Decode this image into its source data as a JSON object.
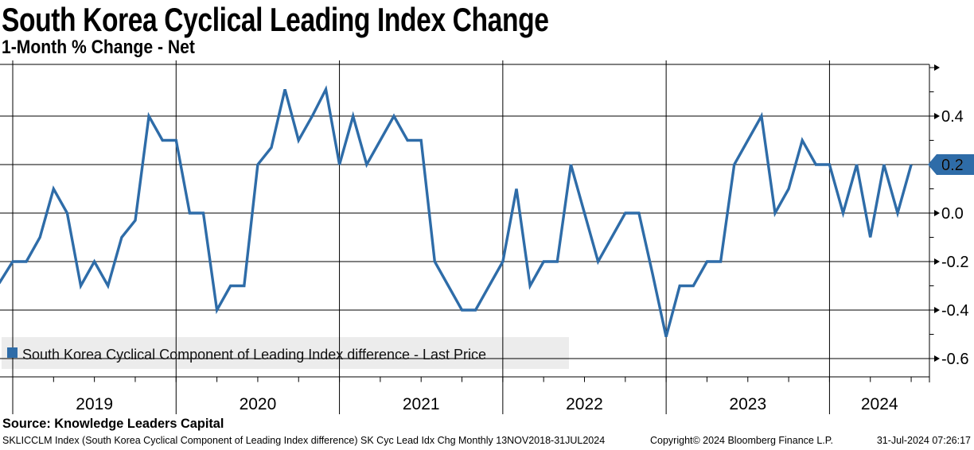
{
  "header": {
    "title": "South Korea Cyclical Leading Index Change",
    "subtitle": "1-Month % Change - Net"
  },
  "chart_data": {
    "type": "line",
    "title": "South Korea Cyclical Leading Index Change",
    "subtitle": "1-Month % Change - Net",
    "ylim": [
      -0.675,
      0.61
    ],
    "grid": "on",
    "legend_position": "bottom-left-band",
    "y_axis": {
      "major": [
        {
          "v": 0.6,
          "label": ""
        },
        {
          "v": 0.4,
          "label": "0.4"
        },
        {
          "v": 0.2,
          "label": "0.2"
        },
        {
          "v": 0.0,
          "label": "0.0"
        },
        {
          "v": -0.2,
          "label": "-0.2"
        },
        {
          "v": -0.4,
          "label": "-0.4"
        },
        {
          "v": -0.6,
          "label": "-0.6"
        }
      ],
      "minor": [
        0.5,
        0.3,
        0.1,
        -0.1,
        -0.3,
        -0.5
      ]
    },
    "x_axis": {
      "years": [
        "2019",
        "2020",
        "2021",
        "2022",
        "2023",
        "2024"
      ]
    },
    "last_price": {
      "value": 0.2,
      "label": "0.2"
    },
    "series": [
      {
        "name": "South Korea Cyclical Component of Leading Index difference - Last Price",
        "color": "#2e6ca8",
        "frequency": "monthly",
        "start_month": "2018-12",
        "values": [
          -0.29,
          -0.2,
          -0.2,
          -0.1,
          0.1,
          0.0,
          -0.3,
          -0.2,
          -0.3,
          -0.1,
          -0.03,
          0.4,
          0.3,
          0.3,
          0.0,
          0.0,
          -0.4,
          -0.3,
          -0.3,
          0.2,
          0.27,
          0.51,
          0.3,
          0.4,
          0.51,
          0.2,
          0.4,
          0.2,
          0.3,
          0.4,
          0.3,
          0.3,
          -0.2,
          -0.3,
          -0.4,
          -0.4,
          -0.3,
          -0.2,
          0.1,
          -0.3,
          -0.2,
          -0.2,
          0.2,
          0.0,
          -0.2,
          -0.1,
          0.0,
          0.0,
          -0.25,
          -0.51,
          -0.3,
          -0.3,
          -0.2,
          -0.2,
          0.2,
          0.3,
          0.4,
          0.0,
          0.1,
          0.3,
          0.2,
          0.2,
          0.0,
          0.2,
          -0.1,
          0.2,
          0.0,
          0.2
        ]
      }
    ]
  },
  "legend": {
    "label": "South Korea Cyclical Component of Leading Index difference - Last Price"
  },
  "footer": {
    "source": "Source: Knowledge Leaders Capital",
    "descriptor": "SKLICCLM Index (South Korea Cyclical Component of Leading Index difference) SK Cyc Lead Idx Chg  Monthly 13NOV2018-31JUL2024",
    "copyright": "Copyright© 2024 Bloomberg Finance L.P.",
    "timestamp": "31-Jul-2024 07:26:17"
  },
  "colors": {
    "line": "#2e6ca8",
    "grid": "#000000",
    "legend_bg": "#ececec",
    "flag_bg": "#2e6ca8",
    "flag_text": "#ffffff"
  }
}
